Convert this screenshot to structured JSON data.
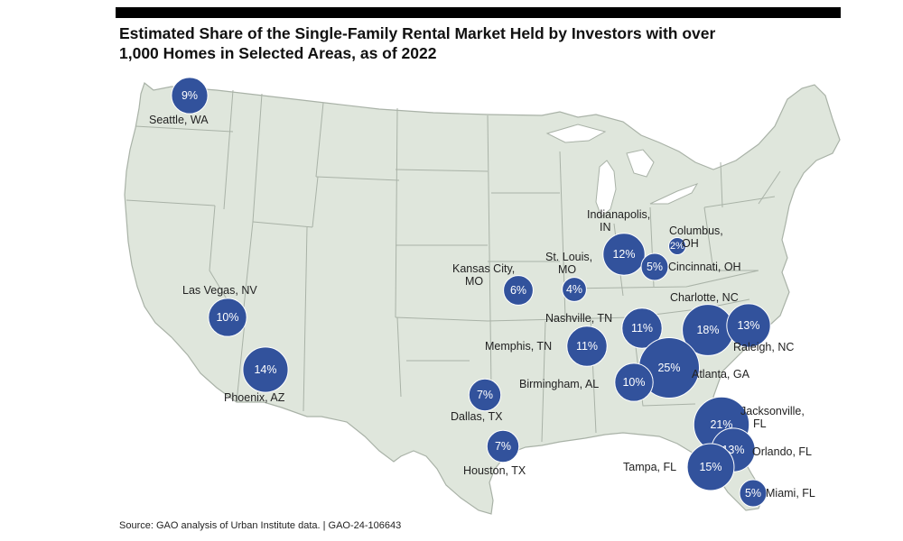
{
  "title": {
    "line1": "Estimated Share of the Single-Family Rental Market Held by Investors with over",
    "line2": "1,000 Homes in Selected Areas, as of 2022"
  },
  "source": "Source: GAO analysis of Urban Institute data.  |  GAO-24-106643",
  "colors": {
    "land": "#dfe6dc",
    "border": "#a9b2a7",
    "marker": "#32529c",
    "top_bar": "#000000"
  },
  "markers": [
    {
      "area": "Seattle, WA",
      "label_lines": [
        "Seattle, WA"
      ],
      "percent": 9
    },
    {
      "area": "Las Vegas, NV",
      "label_lines": [
        "Las Vegas, NV"
      ],
      "percent": 10
    },
    {
      "area": "Phoenix, AZ",
      "label_lines": [
        "Phoenix, AZ"
      ],
      "percent": 14
    },
    {
      "area": "Kansas City, MO",
      "label_lines": [
        "Kansas City,",
        "MO"
      ],
      "percent": 6
    },
    {
      "area": "St. Louis, MO",
      "label_lines": [
        "St. Louis,",
        "MO"
      ],
      "percent": 4
    },
    {
      "area": "Indianapolis, IN",
      "label_lines": [
        "Indianapolis,",
        "IN"
      ],
      "percent": 12
    },
    {
      "area": "Columbus, OH",
      "label_lines": [
        "Columbus,",
        "OH"
      ],
      "percent": 2
    },
    {
      "area": "Cincinnati, OH",
      "label_lines": [
        "Cincinnati, OH"
      ],
      "percent": 5
    },
    {
      "area": "Nashville, TN",
      "label_lines": [
        "Nashville, TN"
      ],
      "percent": 11
    },
    {
      "area": "Memphis, TN",
      "label_lines": [
        "Memphis, TN"
      ],
      "percent": 11
    },
    {
      "area": "Charlotte, NC",
      "label_lines": [
        "Charlotte, NC"
      ],
      "percent": 18
    },
    {
      "area": "Raleigh, NC",
      "label_lines": [
        "Raleigh, NC"
      ],
      "percent": 13
    },
    {
      "area": "Atlanta, GA",
      "label_lines": [
        "Atlanta, GA"
      ],
      "percent": 25
    },
    {
      "area": "Birmingham, AL",
      "label_lines": [
        "Birmingham, AL"
      ],
      "percent": 10
    },
    {
      "area": "Dallas, TX",
      "label_lines": [
        "Dallas, TX"
      ],
      "percent": 7
    },
    {
      "area": "Houston, TX",
      "label_lines": [
        "Houston, TX"
      ],
      "percent": 7
    },
    {
      "area": "Jacksonville, FL",
      "label_lines": [
        "Jacksonville,",
        "FL"
      ],
      "percent": 21
    },
    {
      "area": "Orlando, FL",
      "label_lines": [
        "Orlando, FL"
      ],
      "percent": 13
    },
    {
      "area": "Tampa, FL",
      "label_lines": [
        "Tampa, FL"
      ],
      "percent": 15
    },
    {
      "area": "Miami, FL",
      "label_lines": [
        "Miami, FL"
      ],
      "percent": 5
    }
  ]
}
